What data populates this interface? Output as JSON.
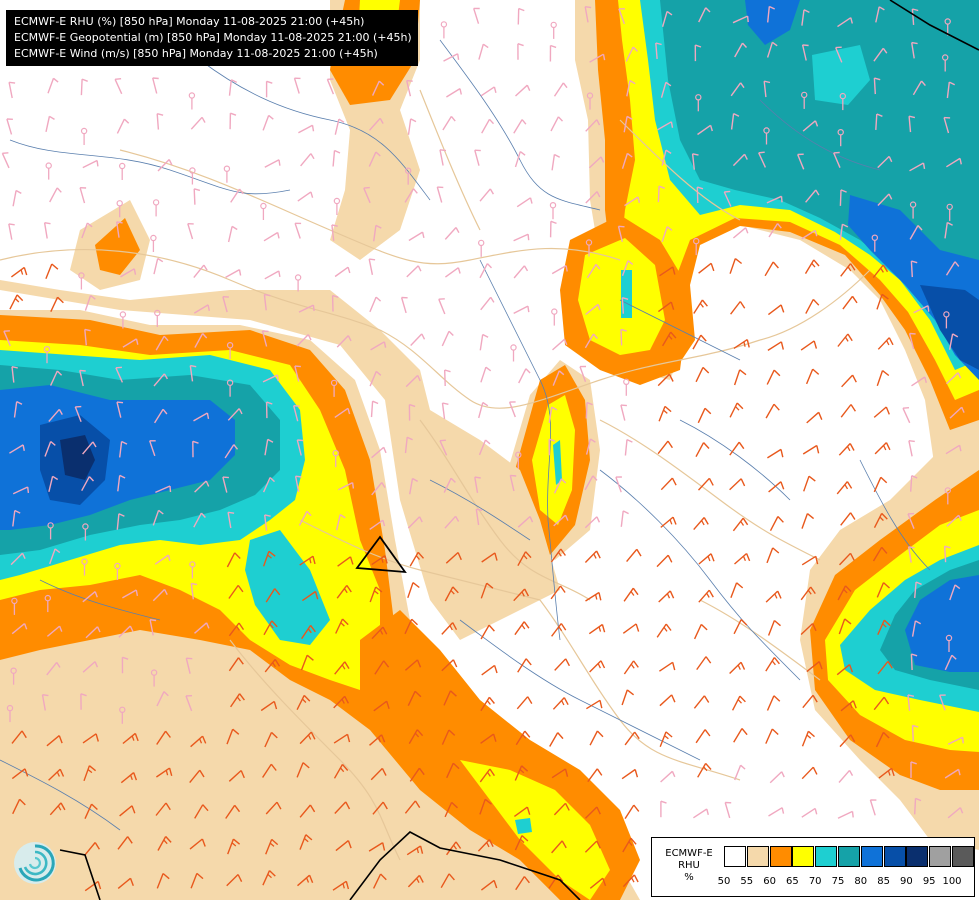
{
  "titles": [
    "ECMWF-E RHU (%) [850 hPa] Monday 11-08-2025 21:00 (+45h)",
    "ECMWF-E Geopotential (m) [850 hPa] Monday 11-08-2025 21:00 (+45h)",
    "ECMWF-E Wind (m/s) [850 hPa] Monday 11-08-2025 21:00 (+45h)"
  ],
  "legend": {
    "title_line1": "ECMWF-E",
    "title_line2": "RHU",
    "unit": "%",
    "ticks": [
      "50",
      "55",
      "60",
      "65",
      "70",
      "75",
      "80",
      "85",
      "90",
      "95",
      "100"
    ],
    "colors": [
      "#ffffff",
      "#f5d9ab",
      "#ff8c00",
      "#ffff00",
      "#1ecfd1",
      "#15a2a8",
      "#0f72d8",
      "#074fa8",
      "#0a2f6e",
      "#a0a0a0",
      "#5a5a5a"
    ]
  },
  "palette": {
    "rhu_55": "#f5d9ab",
    "rhu_60": "#ff8c00",
    "rhu_65": "#ffff00",
    "rhu_70": "#1ecfd1",
    "rhu_75": "#15a2a8",
    "rhu_80": "#0f72d8",
    "rhu_85": "#074fa8",
    "rhu_90": "#0a2f6e",
    "wind_light": "#f0a8c0",
    "wind_strong": "#e8581c",
    "rivers": "#5a7fae",
    "borders": "#e6c799",
    "contour": "#000000"
  },
  "logo_icon": "ecmwf-swirl-icon"
}
